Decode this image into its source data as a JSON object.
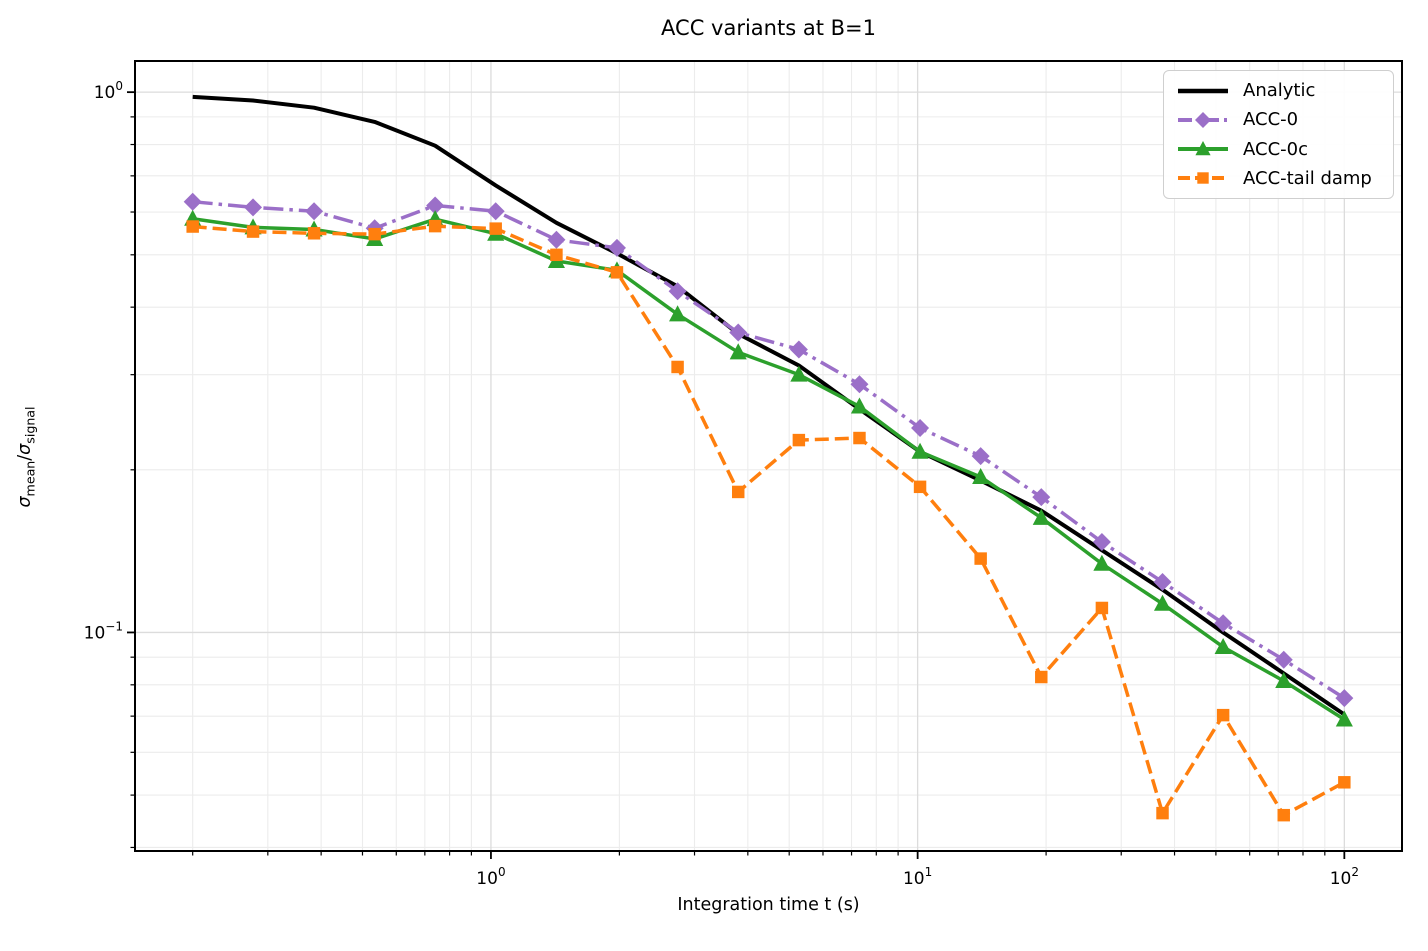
{
  "figure": {
    "background": "#ffffff"
  },
  "chart_data": {
    "type": "line",
    "title": "ACC variants at B=1",
    "xlabel": "Integration time t (s)",
    "ylabel": {
      "numerator": "σ",
      "numerator_sub": "mean",
      "separator": "/",
      "denominator": "σ",
      "denominator_sub": "signal"
    },
    "xscale": "log",
    "yscale": "log",
    "xlim": [
      0.1465,
      136.5
    ],
    "ylim": [
      0.0394,
      1.142
    ],
    "grid": "on",
    "legend_position": "upper right",
    "x_ticks": [
      {
        "value": 1,
        "label_base": "10",
        "label_exp": "0"
      },
      {
        "value": 10,
        "label_base": "10",
        "label_exp": "1"
      },
      {
        "value": 100,
        "label_base": "10",
        "label_exp": "2"
      }
    ],
    "y_ticks": [
      {
        "value": 1,
        "label_base": "10",
        "label_exp": "0"
      },
      {
        "value": 0.1,
        "label_base": "10",
        "label_exp": "−1"
      }
    ],
    "x": [
      0.2,
      0.277,
      0.385,
      0.534,
      0.74,
      1.026,
      1.424,
      1.974,
      2.738,
      3.798,
      5.268,
      7.306,
      10.131,
      14.051,
      19.488,
      27.029,
      37.489,
      51.992,
      72.109,
      100
    ],
    "series": [
      {
        "name": "Analytic",
        "color": "#000000",
        "linestyle": "solid",
        "linewidth": 4,
        "marker": "none",
        "values": [
          0.98,
          0.965,
          0.936,
          0.881,
          0.796,
          0.672,
          0.573,
          0.503,
          0.437,
          0.357,
          0.312,
          0.259,
          0.216,
          0.191,
          0.168,
          0.142,
          0.12,
          0.1,
          0.084,
          0.0705
        ]
      },
      {
        "name": "ACC-0",
        "color": "#9b6fc8",
        "linestyle": "dashdot",
        "linewidth": 3.5,
        "marker": "diamond",
        "values": [
          0.627,
          0.612,
          0.602,
          0.56,
          0.617,
          0.602,
          0.533,
          0.515,
          0.428,
          0.359,
          0.334,
          0.288,
          0.239,
          0.212,
          0.178,
          0.147,
          0.124,
          0.104,
          0.089,
          0.0756
        ]
      },
      {
        "name": "ACC-0c",
        "color": "#2ca02c",
        "linestyle": "solid",
        "linewidth": 3.5,
        "marker": "triangle-up",
        "values": [
          0.583,
          0.562,
          0.557,
          0.535,
          0.582,
          0.547,
          0.487,
          0.468,
          0.388,
          0.33,
          0.3,
          0.262,
          0.216,
          0.194,
          0.163,
          0.134,
          0.113,
          0.094,
          0.0813,
          0.069
        ]
      },
      {
        "name": "ACC-tail damp",
        "color": "#ff7f0e",
        "linestyle": "dashed",
        "linewidth": 3.5,
        "marker": "square",
        "values": [
          0.564,
          0.552,
          0.548,
          0.546,
          0.565,
          0.559,
          0.5,
          0.464,
          0.31,
          0.182,
          0.227,
          0.229,
          0.186,
          0.137,
          0.0827,
          0.111,
          0.0463,
          0.0703,
          0.0459,
          0.0528
        ]
      }
    ]
  }
}
